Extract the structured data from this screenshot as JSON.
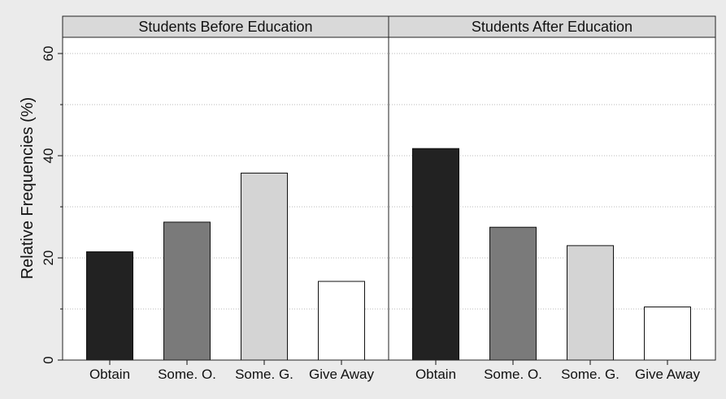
{
  "chart_data": {
    "type": "bar",
    "ylabel": "Relative Frequencies (%)",
    "ylim": [
      0,
      60
    ],
    "yticks": [
      0,
      20,
      40,
      60
    ],
    "grid": true,
    "categories": [
      "Obtain",
      "Some. O.",
      "Some. G.",
      "Give Away"
    ],
    "category_colors": [
      "#222222",
      "#7a7a7a",
      "#d4d4d4",
      "#ffffff"
    ],
    "panels": [
      {
        "title": "Students Before Education",
        "values": [
          21.2,
          27.0,
          36.6,
          15.4
        ]
      },
      {
        "title": "Students After Education",
        "values": [
          41.4,
          26.0,
          22.4,
          10.4
        ]
      }
    ]
  }
}
